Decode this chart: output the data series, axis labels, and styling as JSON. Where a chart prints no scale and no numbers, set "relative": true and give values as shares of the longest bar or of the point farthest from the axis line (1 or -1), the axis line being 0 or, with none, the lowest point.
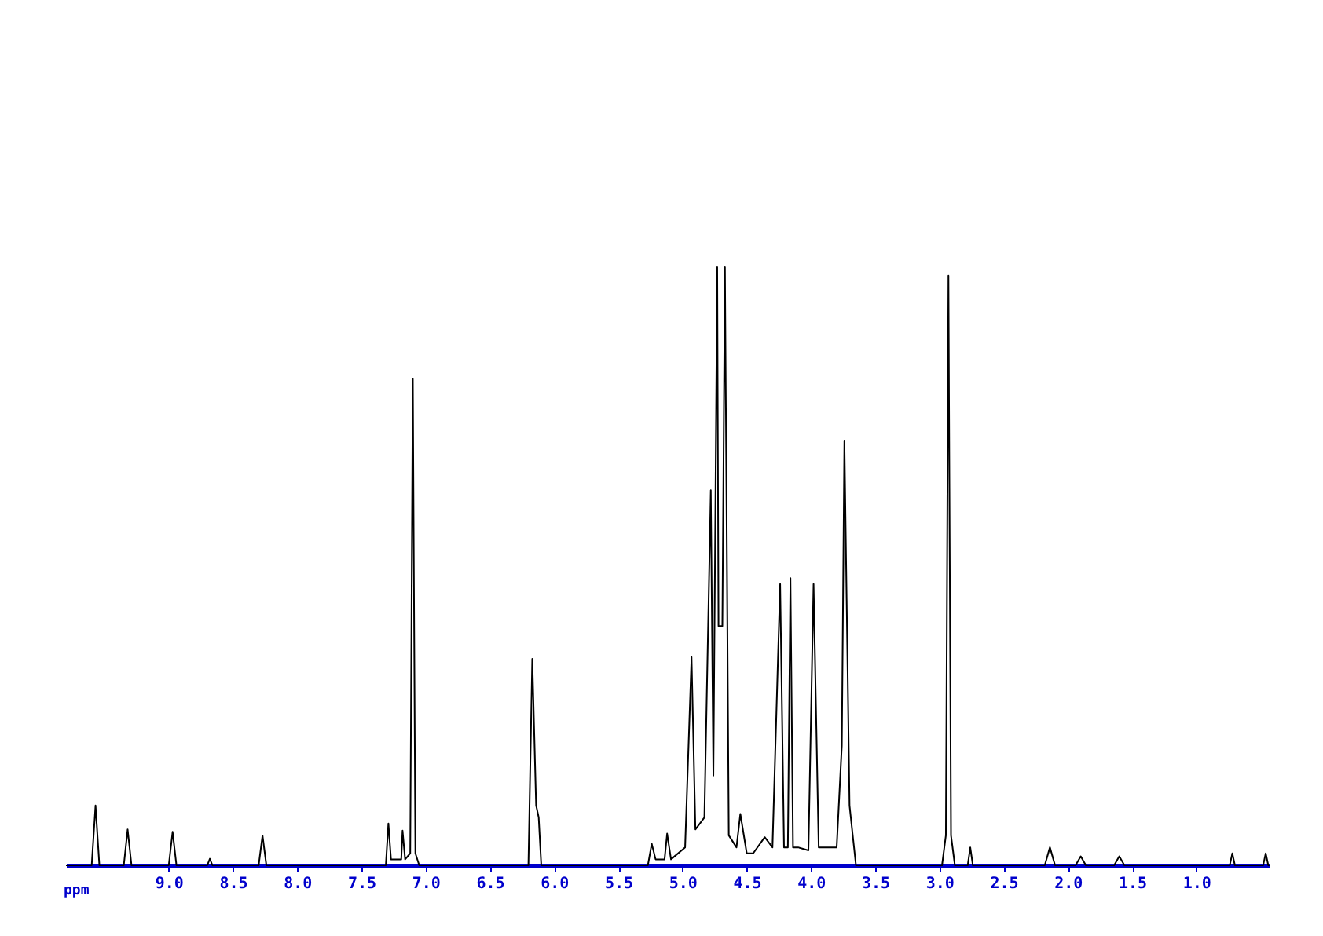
{
  "chart_data": {
    "type": "line",
    "relative": true,
    "xlabel": "ppm",
    "xlim": [
      9.8,
      0.43
    ],
    "grid": false,
    "marker": "none",
    "line_style": "solid",
    "xticks": [
      {
        "value": 9.0,
        "label": "9.0"
      },
      {
        "value": 8.5,
        "label": "8.5"
      },
      {
        "value": 8.0,
        "label": "8.0"
      },
      {
        "value": 7.5,
        "label": "7.5"
      },
      {
        "value": 7.0,
        "label": "7.0"
      },
      {
        "value": 6.5,
        "label": "6.5"
      },
      {
        "value": 6.0,
        "label": "6.0"
      },
      {
        "value": 5.5,
        "label": "5.5"
      },
      {
        "value": 5.0,
        "label": "5.0"
      },
      {
        "value": 4.5,
        "label": "4.5"
      },
      {
        "value": 4.0,
        "label": "4.0"
      },
      {
        "value": 3.5,
        "label": "3.5"
      },
      {
        "value": 3.0,
        "label": "3.0"
      },
      {
        "value": 2.5,
        "label": "2.5"
      },
      {
        "value": 2.0,
        "label": "2.0"
      },
      {
        "value": 1.5,
        "label": "1.5"
      },
      {
        "value": 1.0,
        "label": "1.0"
      }
    ],
    "series": [
      {
        "color": "#000000",
        "x": [
          9.8,
          9.6,
          9.57,
          9.54,
          9.35,
          9.32,
          9.29,
          9.0,
          8.97,
          8.94,
          8.7,
          8.68,
          8.66,
          8.3,
          8.27,
          8.24,
          7.31,
          7.29,
          7.27,
          7.19,
          7.18,
          7.16,
          7.12,
          7.1,
          7.08,
          7.05,
          6.2,
          6.17,
          6.14,
          6.12,
          6.1,
          5.27,
          5.24,
          5.21,
          5.14,
          5.12,
          5.09,
          4.98,
          4.93,
          4.9,
          4.83,
          4.78,
          4.76,
          4.73,
          4.72,
          4.69,
          4.67,
          4.64,
          4.58,
          4.55,
          4.5,
          4.45,
          4.36,
          4.3,
          4.24,
          4.21,
          4.18,
          4.16,
          4.14,
          4.1,
          4.02,
          3.98,
          3.94,
          3.8,
          3.76,
          3.74,
          3.7,
          3.65,
          2.98,
          2.95,
          2.93,
          2.91,
          2.88,
          2.78,
          2.76,
          2.74,
          2.18,
          2.14,
          2.1,
          1.94,
          1.9,
          1.86,
          1.64,
          1.6,
          1.56,
          0.74,
          0.72,
          0.7,
          0.48,
          0.46,
          0.44,
          0.43
        ],
        "values": [
          0,
          0,
          0.1,
          0,
          0,
          0.06,
          0,
          0,
          0.056,
          0,
          0,
          0.011,
          0,
          0,
          0.05,
          0,
          0,
          0.07,
          0.01,
          0.01,
          0.058,
          0.01,
          0.02,
          0.813,
          0.02,
          0,
          0,
          0.345,
          0.1,
          0.08,
          0,
          0,
          0.036,
          0.01,
          0.01,
          0.053,
          0.01,
          0.03,
          0.348,
          0.06,
          0.08,
          0.627,
          0.15,
          1.0,
          0.4,
          0.4,
          1.0,
          0.05,
          0.03,
          0.086,
          0.02,
          0.02,
          0.047,
          0.03,
          0.47,
          0.03,
          0.03,
          0.48,
          0.03,
          0.03,
          0.025,
          0.47,
          0.03,
          0.03,
          0.2,
          0.71,
          0.1,
          0,
          0,
          0.05,
          0.986,
          0.05,
          0,
          0,
          0.03,
          0,
          0,
          0.03,
          0,
          0,
          0.015,
          0,
          0,
          0.015,
          0,
          0,
          0.02,
          0,
          0,
          0.02,
          0,
          0
        ]
      }
    ]
  }
}
